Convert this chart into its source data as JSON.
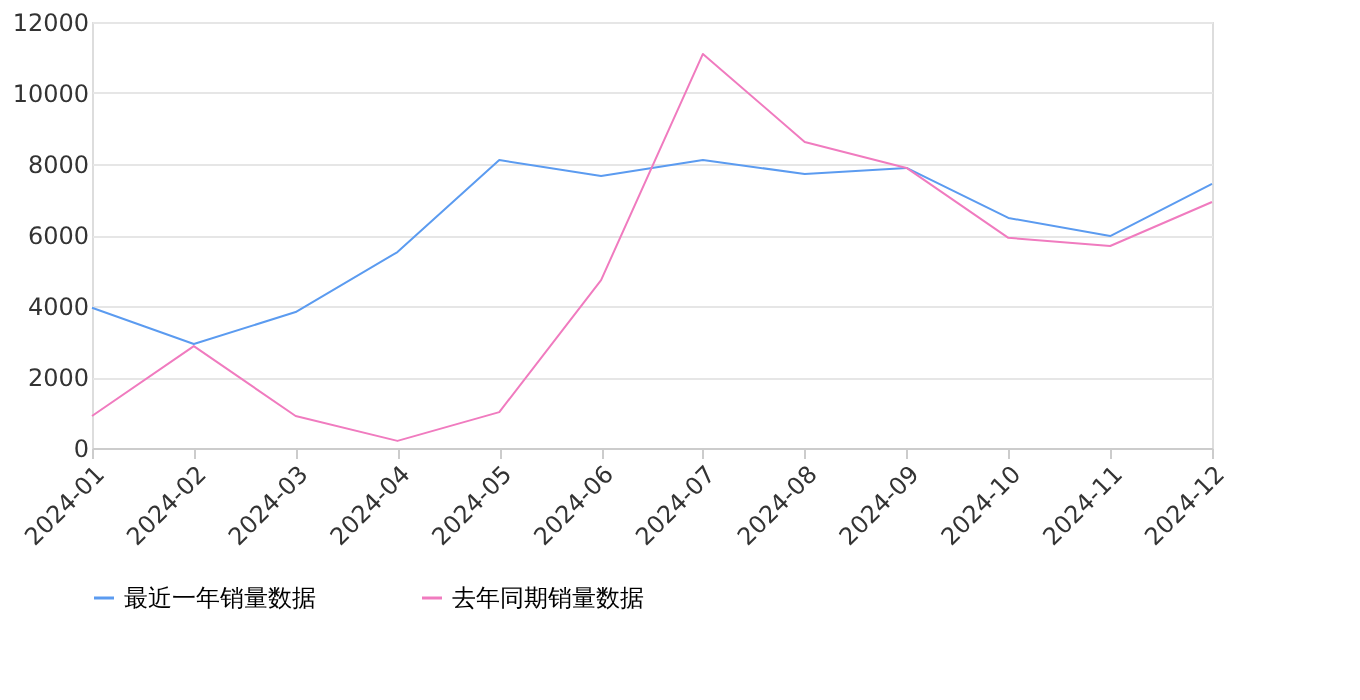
{
  "chart_data": {
    "type": "line",
    "categories": [
      "2024-01",
      "2024-02",
      "2024-03",
      "2024-04",
      "2024-05",
      "2024-06",
      "2024-07",
      "2024-08",
      "2024-09",
      "2024-10",
      "2024-11",
      "2024-12"
    ],
    "series": [
      {
        "name": "最近一年销量数据",
        "color": "#5b9bf0",
        "values": [
          3950,
          2930,
          3830,
          5520,
          8110,
          7660,
          8110,
          7720,
          7890,
          6480,
          5970,
          7440
        ]
      },
      {
        "name": "去年同期销量数据",
        "color": "#f07bbf",
        "values": [
          900,
          2870,
          900,
          200,
          1010,
          4730,
          11100,
          8620,
          7890,
          5920,
          5690,
          6930
        ]
      }
    ],
    "ylim": [
      0,
      12000
    ],
    "yticks": [
      0,
      2000,
      4000,
      6000,
      8000,
      10000,
      12000
    ],
    "grid": "y",
    "legend": "bottom",
    "marker": "none",
    "line_style": "solid"
  }
}
